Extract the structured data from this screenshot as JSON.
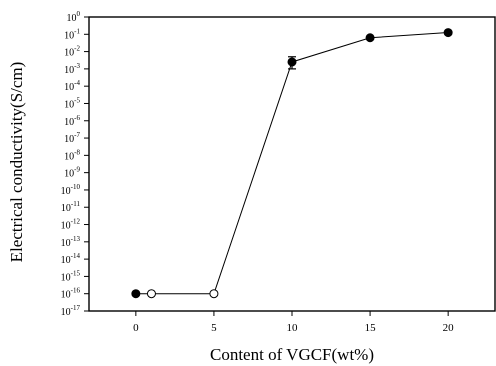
{
  "chart_data": {
    "type": "scatter",
    "title": "",
    "xlabel": "Content of VGCF(wt%)",
    "ylabel": "Electrical conductivity(S/cm)",
    "y_scale": "log",
    "xlim": [
      -3,
      23
    ],
    "ylim_exponent": [
      -17,
      0
    ],
    "x_ticks": [
      0,
      5,
      10,
      15,
      20
    ],
    "y_tick_exponents": [
      0,
      -1,
      -2,
      -3,
      -4,
      -5,
      -6,
      -7,
      -8,
      -9,
      -10,
      -11,
      -12,
      -13,
      -14,
      -15,
      -16,
      -17
    ],
    "y_tick_base": "10",
    "line": {
      "connected": true,
      "x": [
        0,
        1,
        5,
        10,
        15,
        20
      ],
      "y_exponent": [
        -16,
        -16,
        -16,
        -2.6,
        -1.2,
        -0.9
      ]
    },
    "points": [
      {
        "x": 0,
        "y_exponent": -16,
        "marker": "filled"
      },
      {
        "x": 1,
        "y_exponent": -16,
        "marker": "open"
      },
      {
        "x": 5,
        "y_exponent": -16,
        "marker": "open"
      },
      {
        "x": 10,
        "y_exponent": -2.6,
        "marker": "filled",
        "error_exponent": [
          -2.3,
          -3.0
        ]
      },
      {
        "x": 15,
        "y_exponent": -1.2,
        "marker": "filled"
      },
      {
        "x": 20,
        "y_exponent": -0.9,
        "marker": "filled"
      }
    ],
    "grid": false
  }
}
